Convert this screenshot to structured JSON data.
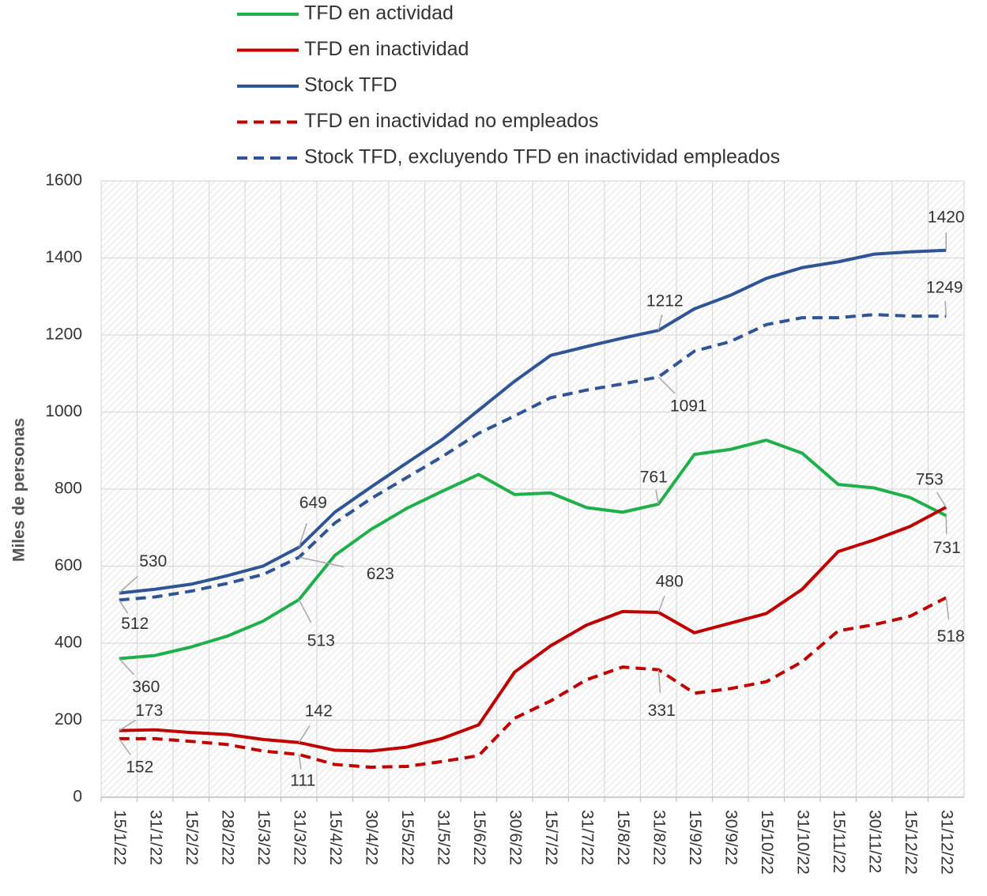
{
  "chart_data": {
    "type": "line",
    "y_axis_label": "Miles de personas",
    "categories": [
      "15/1/22",
      "31/1/22",
      "15/2/22",
      "28/2/22",
      "15/3/22",
      "31/3/22",
      "15/4/22",
      "30/4/22",
      "15/5/22",
      "31/5/22",
      "15/6/22",
      "30/6/22",
      "15/7/22",
      "31/7/22",
      "15/8/22",
      "31/8/22",
      "15/9/22",
      "30/9/22",
      "15/10/22",
      "31/10/22",
      "15/11/22",
      "30/11/22",
      "15/12/22",
      "31/12/22"
    ],
    "ylim": [
      0,
      1600
    ],
    "yticks": [
      0,
      200,
      400,
      600,
      800,
      1000,
      1200,
      1400,
      1600
    ],
    "grid": true,
    "legend": "top",
    "series": [
      {
        "name": "TFD en actividad",
        "color": "#1fb04b",
        "dash": false,
        "values": [
          360,
          368,
          390,
          418,
          457,
          513,
          628,
          695,
          750,
          795,
          838,
          786,
          790,
          752,
          740,
          761,
          890,
          903,
          927,
          893,
          812,
          803,
          778,
          731
        ],
        "value_labels": [
          "360",
          null,
          null,
          null,
          null,
          "513",
          null,
          null,
          null,
          null,
          null,
          null,
          null,
          null,
          null,
          "761",
          null,
          null,
          null,
          null,
          null,
          null,
          null,
          "731"
        ]
      },
      {
        "name": "TFD en inactividad",
        "color": "#c00000",
        "dash": false,
        "values": [
          173,
          175,
          168,
          163,
          150,
          142,
          122,
          120,
          130,
          153,
          188,
          325,
          393,
          447,
          482,
          480,
          427,
          452,
          477,
          540,
          638,
          668,
          703,
          753
        ],
        "value_labels": [
          "173",
          null,
          null,
          null,
          null,
          "142",
          null,
          null,
          null,
          null,
          null,
          null,
          null,
          null,
          null,
          "480",
          null,
          null,
          null,
          null,
          null,
          null,
          null,
          "753"
        ]
      },
      {
        "name": "Stock TFD",
        "color": "#2f5597",
        "dash": false,
        "values": [
          530,
          540,
          553,
          575,
          600,
          649,
          740,
          805,
          868,
          930,
          1005,
          1080,
          1147,
          1170,
          1192,
          1212,
          1268,
          1303,
          1347,
          1375,
          1390,
          1410,
          1416,
          1420
        ],
        "value_labels": [
          "530",
          null,
          null,
          null,
          null,
          "649",
          null,
          null,
          null,
          null,
          null,
          null,
          null,
          null,
          null,
          "1212",
          null,
          null,
          null,
          null,
          null,
          null,
          null,
          "1420"
        ]
      },
      {
        "name": "TFD en inactividad no empleados",
        "color": "#c00000",
        "dash": true,
        "values": [
          152,
          152,
          145,
          137,
          120,
          111,
          85,
          78,
          80,
          93,
          108,
          205,
          250,
          305,
          338,
          331,
          270,
          282,
          300,
          352,
          432,
          448,
          470,
          518
        ],
        "value_labels": [
          "152",
          null,
          null,
          null,
          null,
          "111",
          null,
          null,
          null,
          null,
          null,
          null,
          null,
          null,
          null,
          "331",
          null,
          null,
          null,
          null,
          null,
          null,
          null,
          "518"
        ]
      },
      {
        "name": "Stock TFD, excluyendo TFD en inactividad empleados",
        "color": "#2f5597",
        "dash": true,
        "values": [
          512,
          520,
          535,
          555,
          578,
          623,
          712,
          775,
          830,
          885,
          945,
          990,
          1037,
          1057,
          1073,
          1091,
          1158,
          1183,
          1227,
          1245,
          1245,
          1253,
          1249,
          1249
        ],
        "value_labels": [
          "512",
          null,
          null,
          null,
          null,
          "623",
          null,
          null,
          null,
          null,
          null,
          null,
          null,
          null,
          null,
          "1091",
          null,
          null,
          null,
          null,
          null,
          null,
          null,
          "1249"
        ]
      }
    ]
  }
}
